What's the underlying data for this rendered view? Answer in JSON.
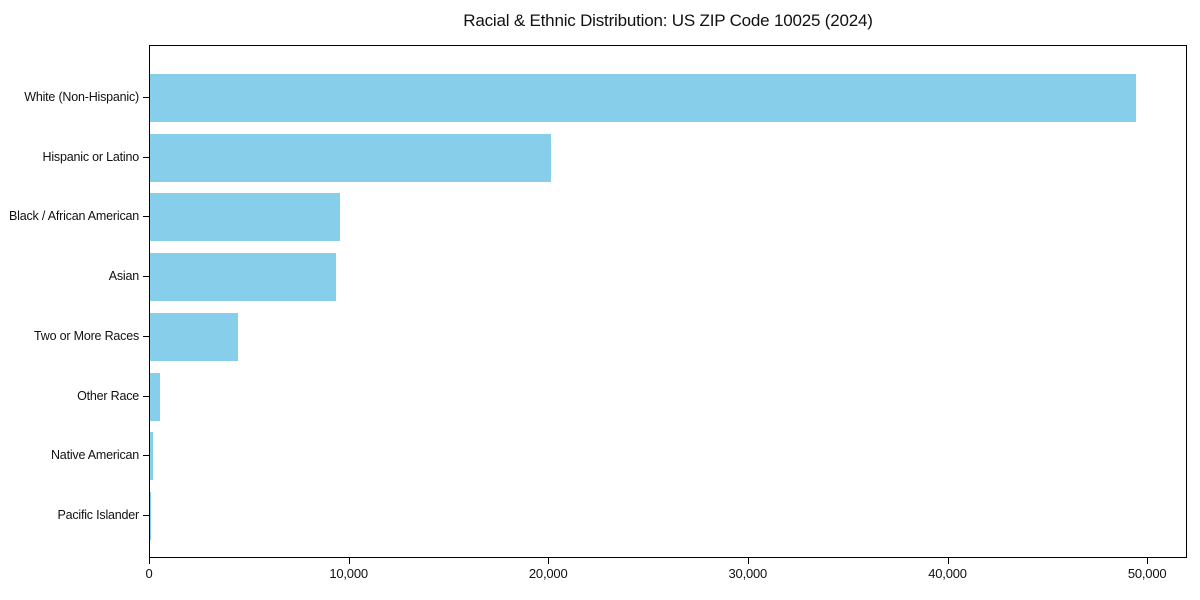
{
  "chart_data": {
    "type": "bar",
    "orientation": "horizontal",
    "title": "Racial & Ethnic Distribution: US ZIP Code 10025 (2024)",
    "categories": [
      "White (Non-Hispanic)",
      "Hispanic or Latino",
      "Black / African American",
      "Asian",
      "Two or More Races",
      "Other Race",
      "Native American",
      "Pacific Islander"
    ],
    "values": [
      49400,
      20100,
      9500,
      9300,
      4400,
      480,
      170,
      40
    ],
    "xlabel": "",
    "ylabel": "",
    "xlim": [
      0,
      52000
    ],
    "xticks": [
      0,
      10000,
      20000,
      30000,
      40000,
      50000
    ],
    "xtick_labels": [
      "0",
      "10,000",
      "20,000",
      "30,000",
      "40,000",
      "50,000"
    ],
    "bar_color": "#87CEEB",
    "axis_color": "#000000",
    "text_color": "#111111",
    "grid": false,
    "legend": null,
    "background": "#ffffff"
  }
}
